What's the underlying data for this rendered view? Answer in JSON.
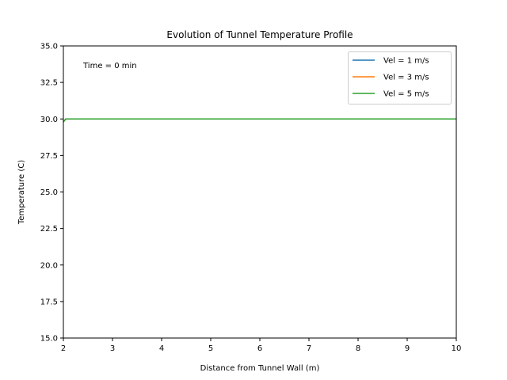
{
  "chart_data": {
    "type": "line",
    "title": "Evolution of Tunnel Temperature Profile",
    "xlabel": "Distance from Tunnel Wall (m)",
    "ylabel": "Temperature (C)",
    "xlim": [
      2,
      10
    ],
    "ylim": [
      15,
      35
    ],
    "xticks": [
      "2",
      "3",
      "4",
      "5",
      "6",
      "7",
      "8",
      "9",
      "10"
    ],
    "yticks": [
      "15.0",
      "17.5",
      "20.0",
      "22.5",
      "25.0",
      "27.5",
      "30.0",
      "32.5",
      "35.0"
    ],
    "grid": false,
    "legend_position": "top-right",
    "annotation": "Time = 0 min",
    "series": [
      {
        "name": "Vel = 1 m/s",
        "color": "#1f77b4",
        "x": [
          2,
          2.05,
          10
        ],
        "y": [
          29.8,
          30,
          30
        ]
      },
      {
        "name": "Vel = 3 m/s",
        "color": "#ff7f0e",
        "x": [
          2,
          2.05,
          10
        ],
        "y": [
          29.8,
          30,
          30
        ]
      },
      {
        "name": "Vel = 5 m/s",
        "color": "#2ca02c",
        "x": [
          2,
          2.05,
          10
        ],
        "y": [
          29.8,
          30,
          30
        ]
      }
    ]
  }
}
